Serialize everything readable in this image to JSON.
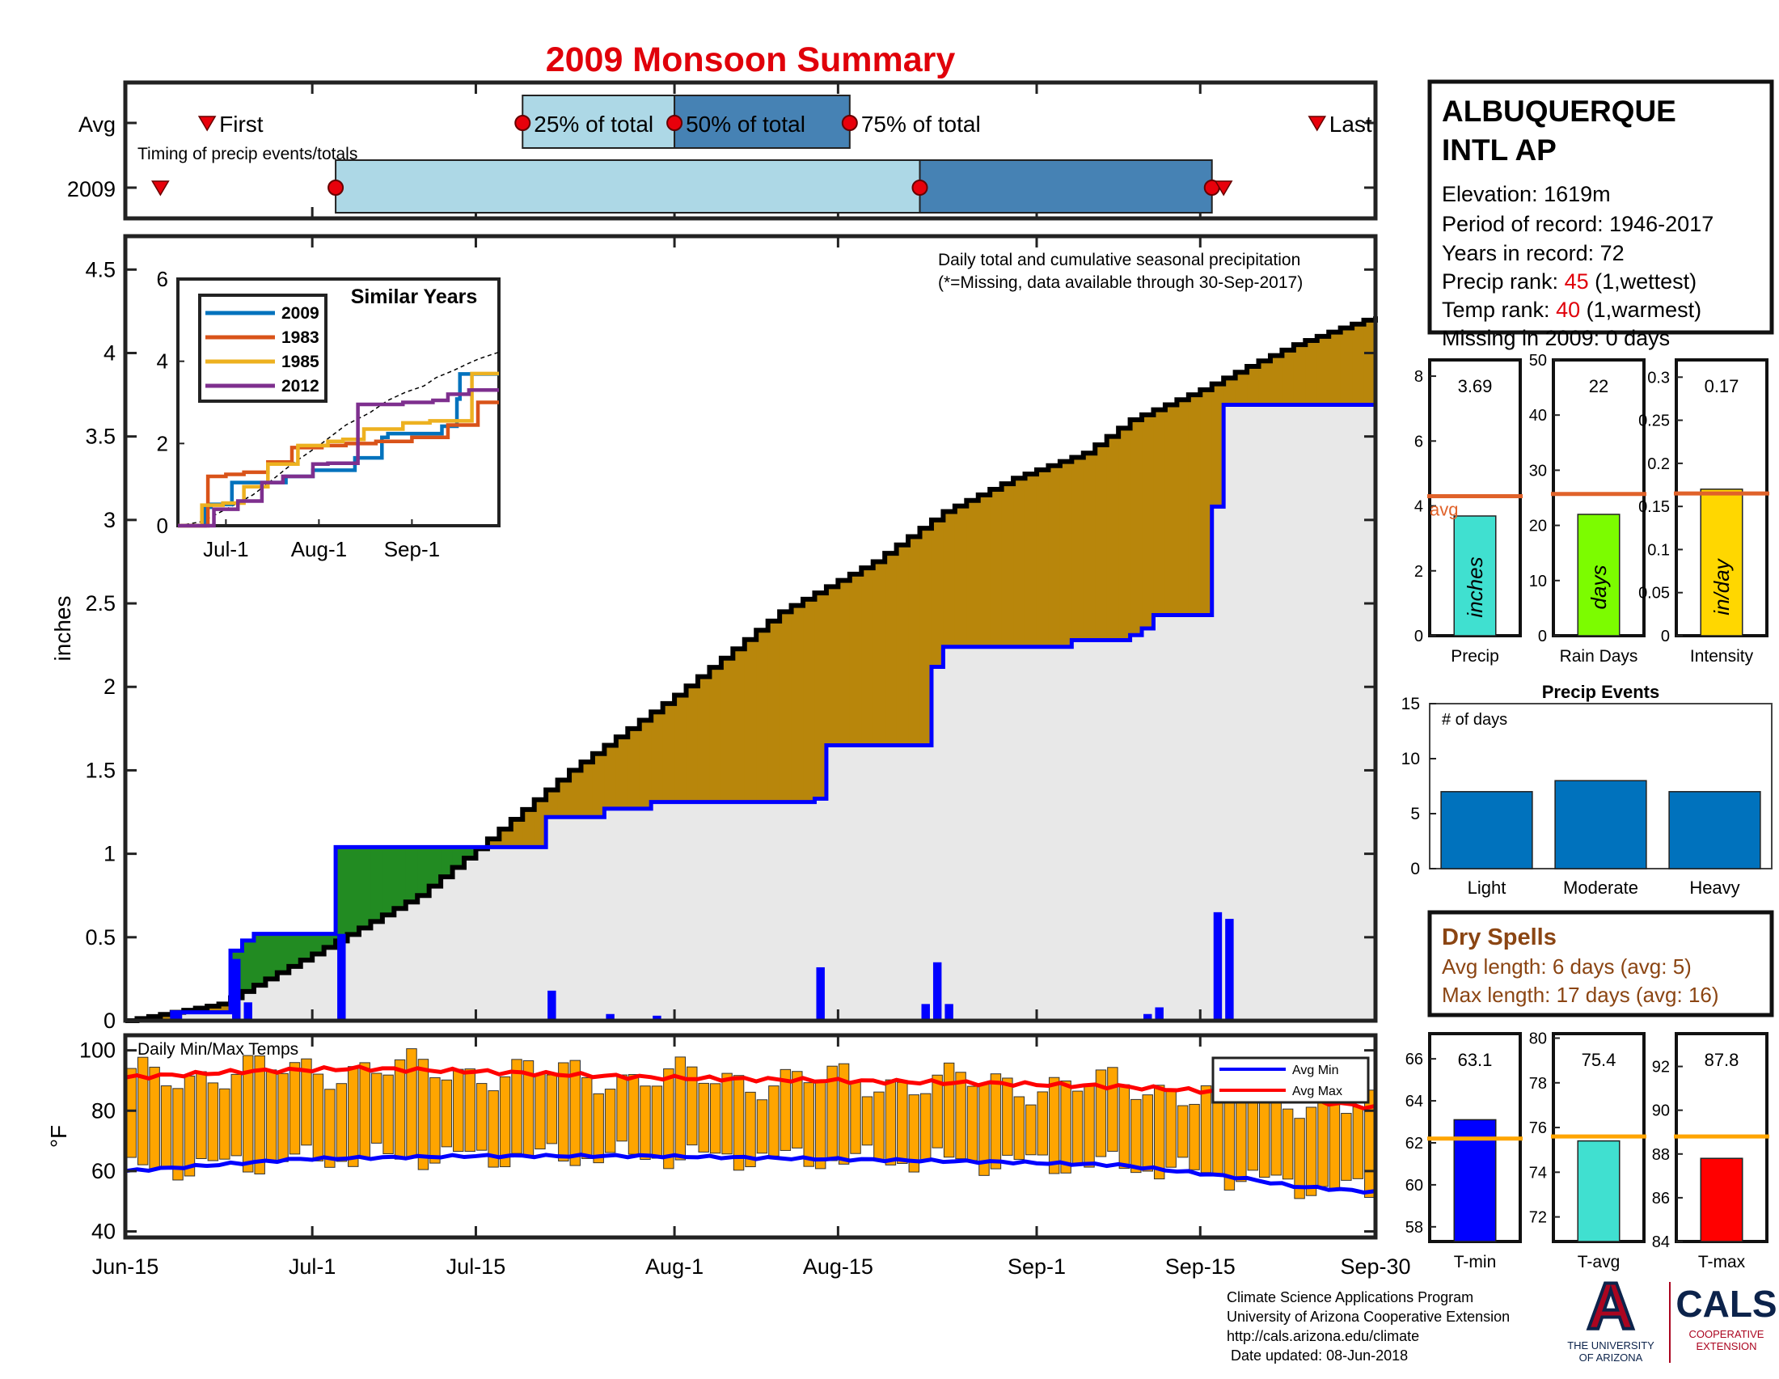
{
  "title": "2009 Monsoon Summary",
  "colors": {
    "title": "#e0000a",
    "pct_light": "#add8e6",
    "pct_dark": "#4682b4",
    "avg_cum_fill": "#b8860b",
    "obs_above_fill": "#228b22",
    "obs_below_fill": "#e8e8e8",
    "avg_line": "#000000",
    "obs_line": "#0000ff",
    "daily_bar": "#0000ff",
    "temp_bar": "#ffa500",
    "avg_min_line": "#0000ff",
    "avg_max_line": "#ff0000",
    "avg_ref_line": "#e0622a",
    "precip_bar": "#40e0d0",
    "raindays_bar": "#7cfc00",
    "intensity_bar": "#ffd700",
    "events_bar": "#0072bd",
    "tmin_bar": "#0000ff",
    "tavg_bar": "#40e0d0",
    "tmax_bar": "#ff0000",
    "temp_ref_line": "#ffa500",
    "dry_spell_text": "#8b4513",
    "rank_value": "#e0000a"
  },
  "timing": {
    "subtitle": "Timing of precip events/totals",
    "rows": [
      "Avg",
      "2009"
    ],
    "labels": {
      "first": "First",
      "p25": "25% of total",
      "p50": "50% of total",
      "p75": "75% of total",
      "last": "Last"
    },
    "avg": {
      "first": "Jun-22",
      "p25": "Jul-19",
      "p50": "Aug-01",
      "p75": "Aug-16",
      "last": "Sep-25"
    },
    "year_2009": {
      "first": "Jun-18",
      "p25": "Jul-03",
      "p50": "Aug-22",
      "p75": "Sep-16",
      "last": "Sep-17"
    }
  },
  "station": {
    "name_line1": "ALBUQUERQUE",
    "name_line2": "INTL AP",
    "elevation": "Elevation: 1619m",
    "period": "Period of record: 1946-2017",
    "years": "Years in record: 72",
    "precip_rank_prefix": "Precip rank: ",
    "precip_rank_value": "45",
    "precip_rank_suffix": " (1,wettest)",
    "temp_rank_prefix": "Temp rank: ",
    "temp_rank_value": "40",
    "temp_rank_suffix": " (1,warmest)",
    "missing": "Missing in 2009: 0 days"
  },
  "main_chart": {
    "legend_line1": "Daily total and cumulative seasonal precipitation",
    "legend_line2": "(*=Missing, data available through 30-Sep-2017)",
    "ylabel": "inches"
  },
  "temp_chart": {
    "subtitle": "Daily Min/Max Temps",
    "ylabel": "°F",
    "legend_min": "Avg Min",
    "legend_max": "Avg Max"
  },
  "similar_years": {
    "title": "Similar Years",
    "series_names": [
      "2009",
      "1983",
      "1985",
      "2012"
    ]
  },
  "dry_spells": {
    "title": "Dry Spells",
    "avg_length": "Avg length: 6 days (avg: 5)",
    "max_length": "Max length: 17 days (avg: 16)"
  },
  "events": {
    "title": "Precip Events",
    "ylabel_text": "# of days"
  },
  "stat_labels": {
    "precip": "3.69",
    "raindays": "22",
    "intensity": "0.17",
    "avg": "avg",
    "inches": "inches",
    "days": "days",
    "inday": "in/day"
  },
  "temp_stat_labels": {
    "tmin": "63.1",
    "tavg": "75.4",
    "tmax": "87.8"
  },
  "footer": {
    "line1": "Climate Science Applications Program",
    "line2": "University of Arizona Cooperative Extension",
    "line3": "http://cals.arizona.edu/climate",
    "line4": " Date updated: 08-Jun-2018",
    "ua_line1": "THE UNIVERSITY",
    "ua_line2": "OF ARIZONA",
    "cals": "CALS",
    "cals_sub1": "COOPERATIVE",
    "cals_sub2": "EXTENSION",
    "ua_logo_letter": "A"
  },
  "chart_data": [
    {
      "type": "step",
      "name": "cumulative_precip",
      "xlabel": "",
      "ylabel": "inches",
      "x_ticks": [
        "Jun-15",
        "Jul-1",
        "Jul-15",
        "Aug-1",
        "Aug-15",
        "Sep-1",
        "Sep-15",
        "Sep-30"
      ],
      "x_tick_days": [
        0,
        16,
        30,
        47,
        61,
        78,
        92,
        107
      ],
      "ylim": [
        0,
        4.7
      ],
      "yticks": [
        0,
        0.5,
        1,
        1.5,
        2,
        2.5,
        3,
        3.5,
        4,
        4.5
      ],
      "grid": false,
      "avg_cumulative_knots": {
        "day": [
          0,
          8,
          16,
          25,
          30,
          38,
          47,
          56,
          64,
          70,
          76,
          82,
          86,
          92,
          96,
          100,
          104,
          107
        ],
        "value": [
          0,
          0.1,
          0.4,
          0.75,
          1.03,
          1.5,
          1.95,
          2.45,
          2.75,
          3.05,
          3.25,
          3.4,
          3.6,
          3.78,
          3.92,
          4.05,
          4.15,
          4.22
        ]
      },
      "observed_2009_cumulative": {
        "day": [
          0,
          3,
          4,
          5,
          8,
          9,
          10,
          11,
          17,
          18,
          35,
          36,
          41,
          45,
          59,
          60,
          68,
          69,
          70,
          81,
          86,
          87,
          88,
          92,
          93,
          94,
          95,
          107
        ],
        "value": [
          0,
          0,
          0.05,
          0.05,
          0.05,
          0.42,
          0.48,
          0.52,
          0.52,
          1.04,
          1.04,
          1.22,
          1.27,
          1.31,
          1.33,
          1.65,
          1.65,
          2.12,
          2.24,
          2.28,
          2.31,
          2.35,
          2.43,
          2.43,
          3.08,
          3.69,
          3.69,
          3.69
        ]
      },
      "daily_2009": {
        "day": [
          4,
          9,
          10,
          18,
          36,
          41,
          45,
          59,
          68,
          69,
          70,
          87,
          88,
          93,
          94
        ],
        "value": [
          0.05,
          0.37,
          0.11,
          0.52,
          0.18,
          0.04,
          0.03,
          0.32,
          0.1,
          0.35,
          0.1,
          0.04,
          0.08,
          0.65,
          0.61
        ]
      }
    },
    {
      "type": "bar",
      "name": "daily_temperature_range",
      "ylabel": "°F",
      "ylim": [
        38,
        105
      ],
      "yticks": [
        40,
        60,
        80,
        100
      ],
      "avg_max_knots": {
        "day": [
          0,
          10,
          20,
          30,
          45,
          60,
          75,
          85,
          95,
          100,
          107
        ],
        "value": [
          91,
          93,
          94,
          93,
          91,
          90,
          89,
          88,
          86,
          84,
          81
        ]
      },
      "avg_min_knots": {
        "day": [
          0,
          15,
          30,
          45,
          60,
          75,
          85,
          95,
          100,
          107
        ],
        "value": [
          60,
          64,
          65,
          65,
          64,
          63,
          62,
          58,
          55,
          53
        ]
      }
    },
    {
      "type": "bar",
      "name": "precip_total",
      "value": 3.69,
      "avg": 4.3,
      "ylim": [
        0,
        8.5
      ],
      "yticks": [
        0,
        2,
        4,
        6,
        8
      ],
      "xlabel": "Precip"
    },
    {
      "type": "bar",
      "name": "rain_days",
      "value": 22,
      "avg": 25.7,
      "ylim": [
        0,
        50
      ],
      "yticks": [
        0,
        10,
        20,
        30,
        40,
        50
      ],
      "xlabel": "Rain Days"
    },
    {
      "type": "bar",
      "name": "intensity",
      "value": 0.17,
      "avg": 0.165,
      "ylim": [
        0,
        0.32
      ],
      "yticks": [
        0,
        0.05,
        0.1,
        0.15,
        0.2,
        0.25,
        0.3
      ],
      "ytick_labels": [
        "0",
        "0.05",
        "0.1",
        "0.15",
        "0.2",
        "0.25",
        "0.3"
      ],
      "xlabel": "Intensity"
    },
    {
      "type": "bar",
      "name": "precip_events",
      "categories": [
        "Light",
        "Moderate",
        "Heavy"
      ],
      "values": [
        7,
        8,
        7
      ],
      "ylim": [
        0,
        15
      ],
      "yticks": [
        0,
        5,
        10,
        15
      ]
    },
    {
      "type": "bar",
      "name": "t_min",
      "value": 63.1,
      "avg": 62.2,
      "ylim": [
        57.3,
        67.2
      ],
      "yticks": [
        58,
        60,
        62,
        64,
        66
      ],
      "xlabel": "T-min"
    },
    {
      "type": "bar",
      "name": "t_avg",
      "value": 75.4,
      "avg": 75.6,
      "ylim": [
        70.9,
        80.2
      ],
      "yticks": [
        72,
        74,
        76,
        78,
        80
      ],
      "xlabel": "T-avg"
    },
    {
      "type": "bar",
      "name": "t_max",
      "value": 87.8,
      "avg": 88.8,
      "ylim": [
        84,
        93.5
      ],
      "yticks": [
        84,
        86,
        88,
        90,
        92
      ],
      "xlabel": "T-max"
    },
    {
      "type": "line",
      "name": "similar_years_inset",
      "x_ticks": [
        "Jul-1",
        "Aug-1",
        "Sep-1"
      ],
      "x_tick_days": [
        16,
        47,
        78
      ],
      "ylim": [
        0,
        6
      ],
      "yticks": [
        0,
        2,
        4,
        6
      ],
      "series": [
        {
          "name": "2009",
          "day": [
            0,
            5,
            9,
            11,
            18,
            36,
            45,
            59,
            68,
            70,
            88,
            93,
            94,
            107
          ],
          "value": [
            0,
            0,
            0.45,
            0.52,
            1.05,
            1.2,
            1.35,
            1.65,
            2.15,
            2.24,
            2.42,
            3.08,
            3.69,
            3.69
          ]
        },
        {
          "name": "1983",
          "day": [
            0,
            7,
            10,
            16,
            22,
            30,
            38,
            48,
            56,
            66,
            78,
            90,
            96,
            100,
            107
          ],
          "value": [
            0,
            0,
            1.2,
            1.25,
            1.3,
            1.55,
            1.9,
            1.95,
            2.0,
            2.05,
            2.15,
            2.45,
            2.45,
            3.0,
            3.0
          ]
        },
        {
          "name": "1985",
          "day": [
            0,
            5,
            8,
            15,
            22,
            30,
            40,
            50,
            55,
            62,
            75,
            84,
            95,
            98,
            107
          ],
          "value": [
            0,
            0,
            0.5,
            0.55,
            0.95,
            1.5,
            1.95,
            2.05,
            2.1,
            2.35,
            2.5,
            2.55,
            2.55,
            3.7,
            3.7
          ]
        },
        {
          "name": "2012",
          "day": [
            0,
            6,
            12,
            20,
            28,
            35,
            45,
            50,
            60,
            75,
            85,
            90,
            97,
            100,
            107
          ],
          "value": [
            0,
            0,
            0.4,
            0.6,
            1.05,
            1.2,
            1.5,
            1.52,
            2.95,
            3.0,
            3.05,
            3.2,
            3.3,
            3.3,
            3.3
          ]
        }
      ]
    }
  ]
}
